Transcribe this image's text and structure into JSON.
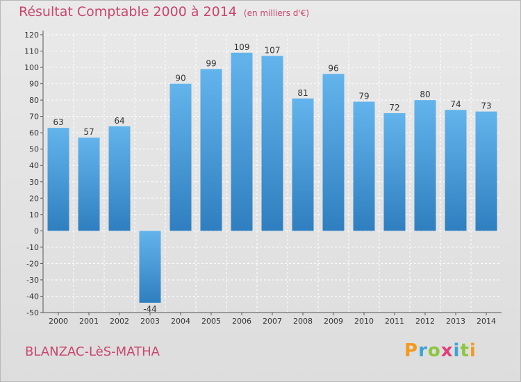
{
  "header": {
    "title": "Résultat Comptable 2000 à 2014",
    "subtitle": "(en milliers d'€)"
  },
  "footer": {
    "commune": "BLANZAC-LèS-MATHA",
    "brand": "Proxiti",
    "brand_colors": [
      "#f39a1e",
      "#3aa4d8",
      "#8cc63f",
      "#e63b7a",
      "#3aa4d8",
      "#8cc63f",
      "#f39a1e"
    ]
  },
  "colors": {
    "bar_light": "#63b4ec",
    "bar_dark": "#2f7fc0",
    "grid": "#ffffff",
    "title": "#c8466e"
  },
  "chart_data": {
    "type": "bar",
    "title": "Résultat Comptable 2000 à 2014",
    "subtitle": "(en milliers d'€)",
    "xlabel": "",
    "ylabel": "",
    "categories": [
      "2000",
      "2001",
      "2002",
      "2003",
      "2004",
      "2005",
      "2006",
      "2007",
      "2008",
      "2009",
      "2010",
      "2011",
      "2012",
      "2013",
      "2014"
    ],
    "values": [
      63,
      57,
      64,
      -44,
      90,
      99,
      109,
      107,
      81,
      96,
      79,
      72,
      80,
      74,
      73
    ],
    "ylim": [
      -50,
      120
    ],
    "yticks": [
      -50,
      -40,
      -30,
      -20,
      -10,
      0,
      10,
      20,
      30,
      40,
      50,
      60,
      70,
      80,
      90,
      100,
      110,
      120
    ],
    "grid": true,
    "legend": "none"
  }
}
